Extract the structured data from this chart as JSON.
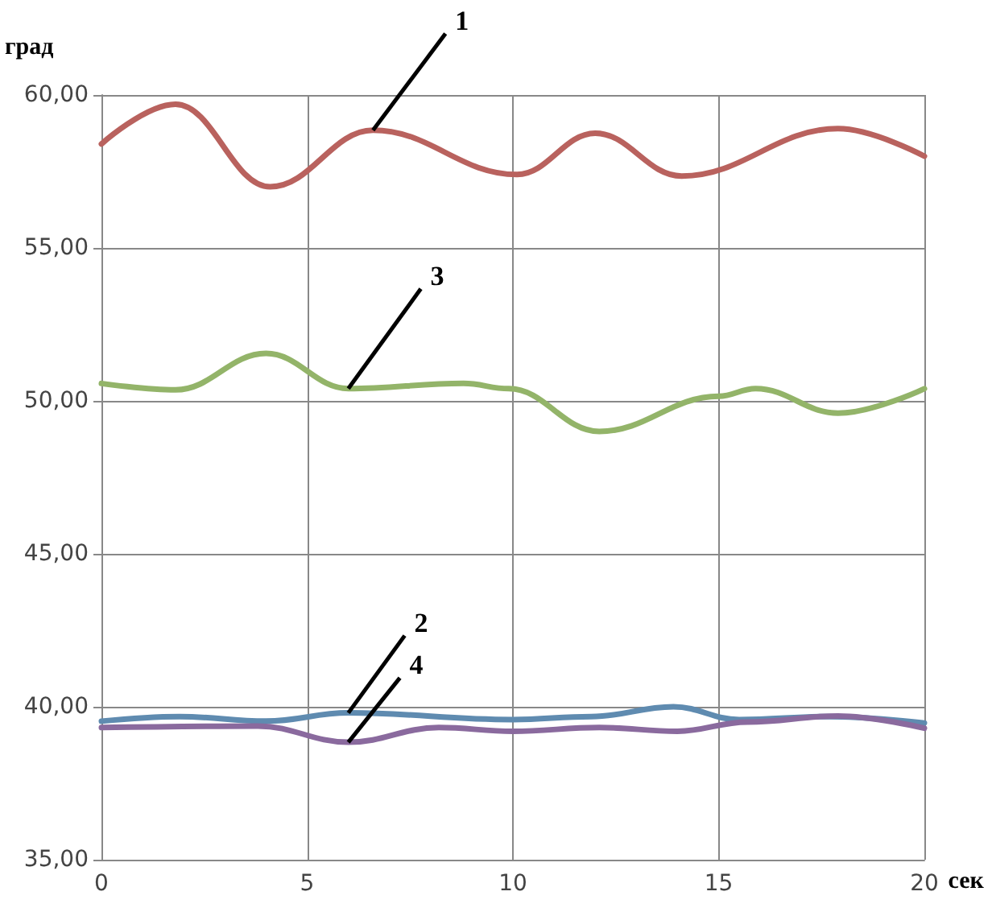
{
  "chart_data": {
    "type": "line",
    "xlabel": "сек",
    "ylabel": "град",
    "xlim": [
      0,
      20
    ],
    "xticks": [
      0,
      5,
      10,
      15,
      20
    ],
    "ylim": [
      35,
      60
    ],
    "yticks": [
      {
        "value": 35,
        "label": "35,00"
      },
      {
        "value": 40,
        "label": "40,00"
      },
      {
        "value": 45,
        "label": "45,00"
      },
      {
        "value": 50,
        "label": "50,00"
      },
      {
        "value": 55,
        "label": "55,00"
      },
      {
        "value": 60,
        "label": "60,00"
      }
    ],
    "grid": true,
    "legend": false,
    "marker": "none",
    "line_style": "solid",
    "series": [
      {
        "name": "1",
        "color": "#b9625e",
        "x": [
          0,
          1.8,
          4.1,
          6.6,
          10.1,
          12,
          14.1,
          17.9,
          20
        ],
        "values": [
          58.4,
          59.7,
          57.0,
          58.85,
          57.4,
          58.75,
          57.35,
          58.9,
          58.0
        ]
      },
      {
        "name": "2",
        "color": "#5f8bb0",
        "x": [
          0,
          1.9,
          4,
          6,
          10,
          11.9,
          13.9,
          15.5,
          17.7,
          20
        ],
        "values": [
          39.53,
          39.68,
          39.53,
          39.8,
          39.58,
          39.68,
          40.0,
          39.58,
          39.68,
          39.47
        ]
      },
      {
        "name": "3",
        "color": "#93b469",
        "x": [
          0,
          1.8,
          4,
          6,
          8.8,
          9.9,
          12.1,
          15,
          15.9,
          17.9,
          20
        ],
        "values": [
          50.57,
          50.36,
          51.55,
          50.4,
          50.57,
          50.4,
          49.0,
          50.15,
          50.4,
          49.6,
          50.4
        ]
      },
      {
        "name": "4",
        "color": "#8a6a9e",
        "x": [
          0,
          3.8,
          6,
          8.2,
          10,
          12.1,
          14,
          15.7,
          17.9,
          20
        ],
        "values": [
          39.32,
          39.37,
          38.84,
          39.32,
          39.2,
          39.32,
          39.2,
          39.5,
          39.7,
          39.3
        ]
      }
    ]
  }
}
